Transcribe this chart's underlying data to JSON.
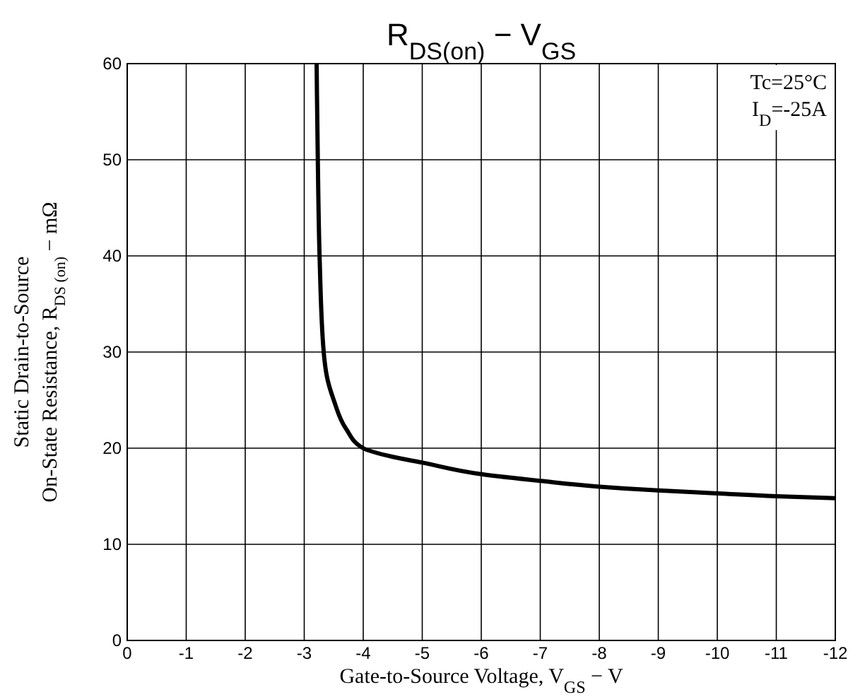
{
  "chart_data": {
    "type": "line",
    "title": "R$_{DS(on)}$ − V$_{GS}$",
    "xlabel": "Gate-to-Source Voltage, V$_{GS}$ − V",
    "ylabel": "Static Drain-to-Source\nOn-State Resistance, R$_{DS (on)}$ − mΩ",
    "annotations": [
      "Tc=25°C",
      "I$_{D}$=-25A"
    ],
    "series": [
      {
        "color": "#000000",
        "x": [
          -3.21,
          -3.23,
          -3.26,
          -3.33,
          -3.4,
          -3.5,
          -3.71,
          -4.0,
          -4.5,
          -5,
          -6,
          -7,
          -8,
          -9,
          -10,
          -11,
          -12
        ],
        "values": [
          60,
          50,
          40,
          30,
          27,
          25,
          22,
          20,
          19.1,
          18.5,
          17.3,
          16.6,
          16.0,
          15.6,
          15.3,
          15.0,
          14.8
        ]
      }
    ],
    "xlim": [
      0,
      -12
    ],
    "ylim": [
      0,
      60
    ],
    "xticks": [
      0,
      -1,
      -2,
      -3,
      -4,
      -5,
      -6,
      -7,
      -8,
      -9,
      -10,
      -11,
      -12
    ],
    "yticks": [
      0,
      10,
      20,
      30,
      40,
      50,
      60
    ],
    "grid": true,
    "line_style": "solid",
    "marker": "none"
  }
}
